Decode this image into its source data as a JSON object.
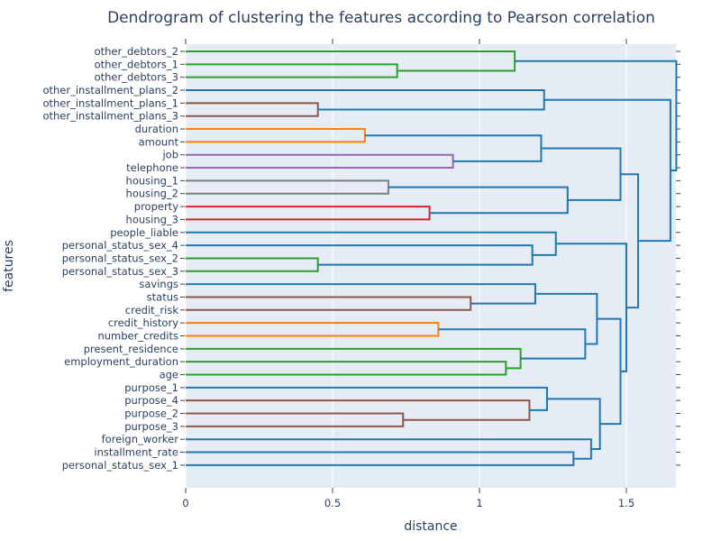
{
  "chart_data": {
    "type": "dendrogram",
    "orientation": "horizontal",
    "title": "Dendrogram of clustering the features according to Pearson correlation",
    "xlabel": "distance",
    "ylabel": "features",
    "xlim": [
      0,
      1.67
    ],
    "xticks": [
      0,
      0.5,
      1,
      1.5
    ],
    "xtick_labels": [
      "0",
      "0.5",
      "1",
      "1.5"
    ],
    "grid": true,
    "leaves": [
      "other_debtors_2",
      "other_debtors_1",
      "other_debtors_3",
      "other_installment_plans_2",
      "other_installment_plans_1",
      "other_installment_plans_3",
      "duration",
      "amount",
      "job",
      "telephone",
      "housing_1",
      "housing_2",
      "property",
      "housing_3",
      "people_liable",
      "personal_status_sex_4",
      "personal_status_sex_2",
      "personal_status_sex_3",
      "savings",
      "status",
      "credit_risk",
      "credit_history",
      "number_credits",
      "present_residence",
      "employment_duration",
      "age",
      "purpose_1",
      "purpose_4",
      "purpose_2",
      "purpose_3",
      "foreign_worker",
      "installment_rate",
      "personal_status_sex_1"
    ],
    "colors": {
      "blue": "#1f77b4",
      "green": "#2ca02c",
      "brown": "#8c564b",
      "orange": "#ff7f0e",
      "purple": "#9467bd",
      "gray": "#7f7f7f",
      "red": "#d62728"
    },
    "merges": [
      {
        "id": "A",
        "left": "other_debtors_1",
        "right": "other_debtors_3",
        "distance": 0.72,
        "color": "green"
      },
      {
        "id": "B",
        "left": "other_debtors_2",
        "right": "A",
        "distance": 1.12,
        "color": "green"
      },
      {
        "id": "C",
        "left": "other_installment_plans_1",
        "right": "other_installment_plans_3",
        "distance": 0.45,
        "color": "brown"
      },
      {
        "id": "D",
        "left": "other_installment_plans_2",
        "right": "C",
        "distance": 1.22,
        "color": "blue"
      },
      {
        "id": "E",
        "left": "duration",
        "right": "amount",
        "distance": 0.61,
        "color": "orange"
      },
      {
        "id": "F",
        "left": "job",
        "right": "telephone",
        "distance": 0.91,
        "color": "purple"
      },
      {
        "id": "G",
        "left": "E",
        "right": "F",
        "distance": 1.21,
        "color": "blue"
      },
      {
        "id": "H",
        "left": "housing_1",
        "right": "housing_2",
        "distance": 0.69,
        "color": "gray"
      },
      {
        "id": "I",
        "left": "property",
        "right": "housing_3",
        "distance": 0.83,
        "color": "red"
      },
      {
        "id": "J",
        "left": "H",
        "right": "I",
        "distance": 1.3,
        "color": "blue"
      },
      {
        "id": "K",
        "left": "G",
        "right": "J",
        "distance": 1.48,
        "color": "blue"
      },
      {
        "id": "L",
        "left": "personal_status_sex_2",
        "right": "personal_status_sex_3",
        "distance": 0.45,
        "color": "green"
      },
      {
        "id": "M",
        "left": "personal_status_sex_4",
        "right": "L",
        "distance": 1.18,
        "color": "blue"
      },
      {
        "id": "N",
        "left": "people_liable",
        "right": "M",
        "distance": 1.26,
        "color": "blue"
      },
      {
        "id": "O",
        "left": "status",
        "right": "credit_risk",
        "distance": 0.97,
        "color": "brown"
      },
      {
        "id": "P",
        "left": "savings",
        "right": "O",
        "distance": 1.19,
        "color": "blue"
      },
      {
        "id": "Q",
        "left": "credit_history",
        "right": "number_credits",
        "distance": 0.86,
        "color": "orange"
      },
      {
        "id": "R",
        "left": "employment_duration",
        "right": "age",
        "distance": 1.09,
        "color": "green"
      },
      {
        "id": "S",
        "left": "present_residence",
        "right": "R",
        "distance": 1.14,
        "color": "green"
      },
      {
        "id": "T",
        "left": "Q",
        "right": "S",
        "distance": 1.36,
        "color": "blue"
      },
      {
        "id": "U",
        "left": "P",
        "right": "T",
        "distance": 1.4,
        "color": "blue"
      },
      {
        "id": "V",
        "left": "purpose_2",
        "right": "purpose_3",
        "distance": 0.74,
        "color": "brown"
      },
      {
        "id": "W",
        "left": "purpose_4",
        "right": "V",
        "distance": 1.17,
        "color": "brown"
      },
      {
        "id": "X",
        "left": "purpose_1",
        "right": "W",
        "distance": 1.23,
        "color": "blue"
      },
      {
        "id": "Y",
        "left": "installment_rate",
        "right": "personal_status_sex_1",
        "distance": 1.32,
        "color": "blue"
      },
      {
        "id": "Z",
        "left": "foreign_worker",
        "right": "Y",
        "distance": 1.38,
        "color": "blue"
      },
      {
        "id": "AA",
        "left": "X",
        "right": "Z",
        "distance": 1.41,
        "color": "blue"
      },
      {
        "id": "AB",
        "left": "U",
        "right": "AA",
        "distance": 1.48,
        "color": "blue"
      },
      {
        "id": "AC",
        "left": "N",
        "right": "AB",
        "distance": 1.5,
        "color": "blue"
      },
      {
        "id": "AD",
        "left": "K",
        "right": "AC",
        "distance": 1.54,
        "color": "blue"
      },
      {
        "id": "AE",
        "left": "D",
        "right": "AD",
        "distance": 1.65,
        "color": "blue"
      },
      {
        "id": "AF",
        "left": "B",
        "right": "AE",
        "distance": 1.67,
        "color": "blue"
      }
    ]
  }
}
